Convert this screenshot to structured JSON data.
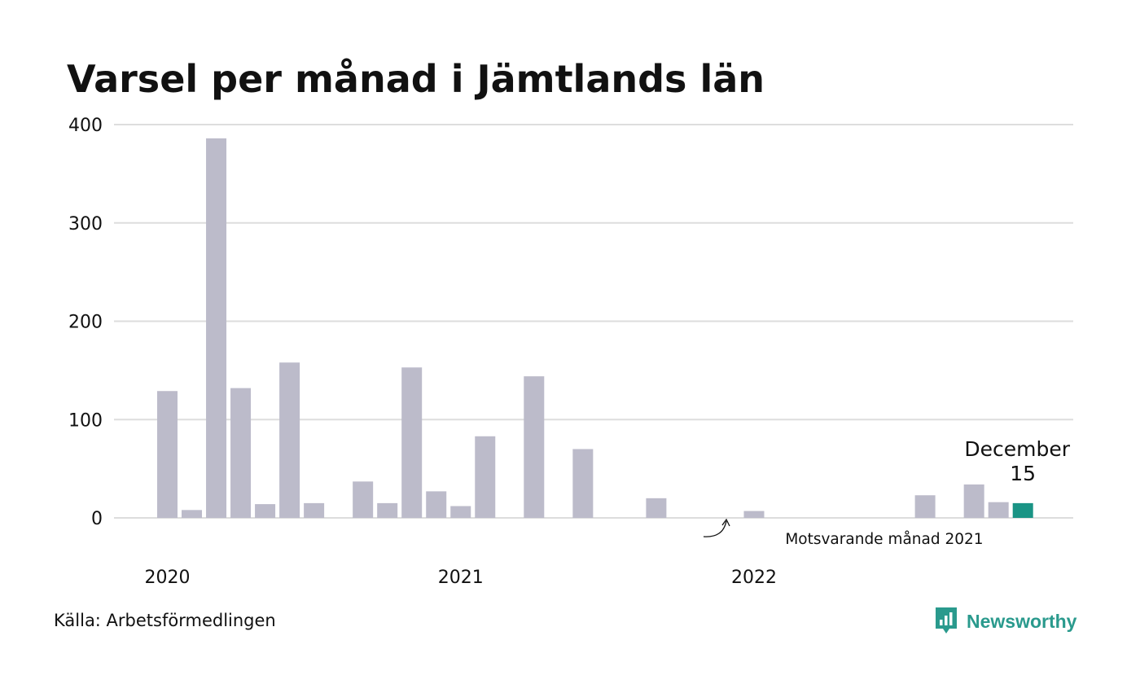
{
  "header": {
    "title": "Varsel per månad i Jämtlands län"
  },
  "footer": {
    "source": "Källa: Arbetsförmedlingen",
    "brand": "Newsworthy"
  },
  "colors": {
    "bar": "#bcbbca",
    "comparison": "#444444",
    "highlight": "#1a9485",
    "grid": "#dddddd",
    "brand": "#2a9a8d"
  },
  "icons": {
    "logo": "newsworthy-logo-icon",
    "annotation": "curved-arrow-icon"
  },
  "chart_data": {
    "type": "bar",
    "title": "Varsel per månad i Jämtlands län",
    "xlabel": "",
    "ylabel": "",
    "ylim": [
      0,
      400
    ],
    "yticks": [
      0,
      100,
      200,
      300,
      400
    ],
    "grid": true,
    "categories": [
      "2020-01",
      "2020-02",
      "2020-03",
      "2020-04",
      "2020-05",
      "2020-06",
      "2020-07",
      "2020-08",
      "2020-09",
      "2020-10",
      "2020-11",
      "2020-12",
      "2021-01",
      "2021-02",
      "2021-03",
      "2021-04",
      "2021-05",
      "2021-06",
      "2021-07",
      "2021-08",
      "2021-09",
      "2021-10",
      "2021-11",
      "2021-12",
      "2022-01",
      "2022-02",
      "2022-03",
      "2022-04",
      "2022-05",
      "2022-06",
      "2022-07",
      "2022-08",
      "2022-09",
      "2022-10",
      "2022-11",
      "2022-12"
    ],
    "values": [
      129,
      8,
      386,
      132,
      14,
      158,
      15,
      0,
      37,
      15,
      153,
      27,
      12,
      83,
      0,
      144,
      0,
      70,
      0,
      0,
      20,
      0,
      0,
      0,
      7,
      0,
      0,
      0,
      0,
      0,
      0,
      23,
      0,
      34,
      16,
      15
    ],
    "xtick_labels": [
      {
        "category": "2020-01",
        "label": "2020"
      },
      {
        "category": "2021-01",
        "label": "2021"
      },
      {
        "category": "2022-01",
        "label": "2022"
      }
    ],
    "comparison": {
      "category": "2021-12",
      "label": "Motsvarande månad 2021"
    },
    "highlight": {
      "category": "2022-12",
      "month": "December",
      "value": "15"
    }
  }
}
